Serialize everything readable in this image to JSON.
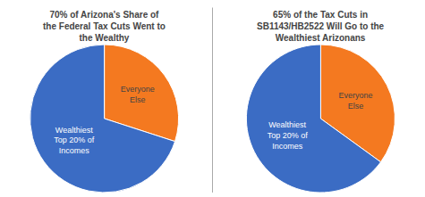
{
  "chart_data": [
    {
      "type": "pie",
      "title": "70% of Arizona's Share of\nthe Federal Tax Cuts Went to\nthe Wealthy",
      "categories": [
        "Everyone\nElse",
        "Wealthiest\nTop 20% of\nIncomes"
      ],
      "values": [
        30,
        70
      ],
      "colors": [
        "#F47920",
        "#3B6CC4"
      ]
    },
    {
      "type": "pie",
      "title": "65% of the Tax Cuts in\nSB1143/HB2522 Will Go to the\nWealthiest Arizonans",
      "categories": [
        "Everyone\nElse",
        "Wealthiest\nTop 20% of\nIncomes"
      ],
      "values": [
        35,
        65
      ],
      "colors": [
        "#F47920",
        "#3B6CC4"
      ]
    }
  ]
}
